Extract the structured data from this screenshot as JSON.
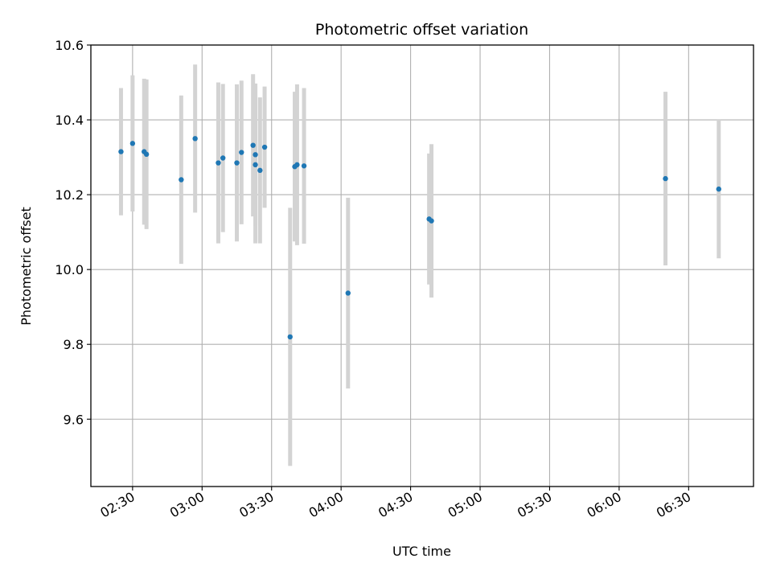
{
  "chart_data": {
    "type": "scatter",
    "title": "Photometric offset variation",
    "xlabel": "UTC time",
    "ylabel": "Photometric offset",
    "xlim": [
      "02:12",
      "06:58"
    ],
    "ylim": [
      9.42,
      10.6
    ],
    "x_ticks": [
      "02:30",
      "03:00",
      "03:30",
      "04:00",
      "04:30",
      "05:00",
      "05:30",
      "06:00",
      "06:30"
    ],
    "y_ticks": [
      "9.6",
      "9.8",
      "10.0",
      "10.2",
      "10.4",
      "10.6"
    ],
    "grid": true,
    "point_color": "#1f77b4",
    "errorbar_color": "#d3d3d3",
    "points": [
      {
        "x": "02:25",
        "y": 10.315,
        "yerr": 0.17
      },
      {
        "x": "02:30",
        "y": 10.337,
        "yerr": 0.182
      },
      {
        "x": "02:35",
        "y": 10.315,
        "yerr": 0.195
      },
      {
        "x": "02:36",
        "y": 10.308,
        "yerr": 0.2
      },
      {
        "x": "02:51",
        "y": 10.24,
        "yerr": 0.225
      },
      {
        "x": "02:57",
        "y": 10.35,
        "yerr": 0.198
      },
      {
        "x": "03:07",
        "y": 10.285,
        "yerr": 0.215
      },
      {
        "x": "03:09",
        "y": 10.298,
        "yerr": 0.198
      },
      {
        "x": "03:15",
        "y": 10.285,
        "yerr": 0.21
      },
      {
        "x": "03:17",
        "y": 10.313,
        "yerr": 0.192
      },
      {
        "x": "03:22",
        "y": 10.332,
        "yerr": 0.19
      },
      {
        "x": "03:23",
        "y": 10.28,
        "yerr": 0.21
      },
      {
        "x": "03:23",
        "y": 10.307,
        "yerr": 0.19
      },
      {
        "x": "03:25",
        "y": 10.265,
        "yerr": 0.195
      },
      {
        "x": "03:27",
        "y": 10.327,
        "yerr": 0.162
      },
      {
        "x": "03:38",
        "y": 9.82,
        "yerr": 0.345
      },
      {
        "x": "03:40",
        "y": 10.275,
        "yerr": 0.2
      },
      {
        "x": "03:41",
        "y": 10.28,
        "yerr": 0.215
      },
      {
        "x": "03:44",
        "y": 10.277,
        "yerr": 0.208
      },
      {
        "x": "04:03",
        "y": 9.937,
        "yerr": 0.255
      },
      {
        "x": "04:38",
        "y": 10.135,
        "yerr": 0.175
      },
      {
        "x": "04:39",
        "y": 10.13,
        "yerr": 0.205
      },
      {
        "x": "06:20",
        "y": 10.243,
        "yerr": 0.232
      },
      {
        "x": "06:43",
        "y": 10.215,
        "yerr": 0.185
      }
    ]
  }
}
